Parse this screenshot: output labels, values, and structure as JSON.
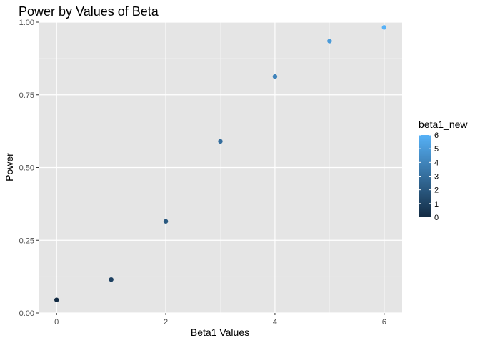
{
  "chart_data": {
    "type": "scatter",
    "title": "Power by Values of Beta",
    "xlabel": "Beta1 Values",
    "ylabel": "Power",
    "x": [
      0,
      1,
      2,
      3,
      4,
      5,
      6
    ],
    "y": [
      0.045,
      0.115,
      0.315,
      0.59,
      0.813,
      0.935,
      0.982
    ],
    "xlim": [
      -0.33,
      6.33
    ],
    "ylim": [
      0,
      1.0
    ],
    "x_ticks": [
      0,
      2,
      4,
      6
    ],
    "y_ticks": [
      0.0,
      0.25,
      0.5,
      0.75,
      1.0
    ],
    "x_tick_labels": [
      "0",
      "2",
      "4",
      "6"
    ],
    "y_tick_labels": [
      "0.00",
      "0.25",
      "0.50",
      "0.75",
      "1.00"
    ],
    "grid": true,
    "color_legend": {
      "title": "beta1_new",
      "min": 0,
      "max": 6,
      "breaks": [
        0,
        1,
        2,
        3,
        4,
        5,
        6
      ],
      "break_labels": [
        "0",
        "1",
        "2",
        "3",
        "4",
        "5",
        "6"
      ],
      "low_color": "#132B43",
      "high_color": "#56B1F7",
      "placement": "right"
    },
    "panel_background": "#E5E5E5"
  }
}
